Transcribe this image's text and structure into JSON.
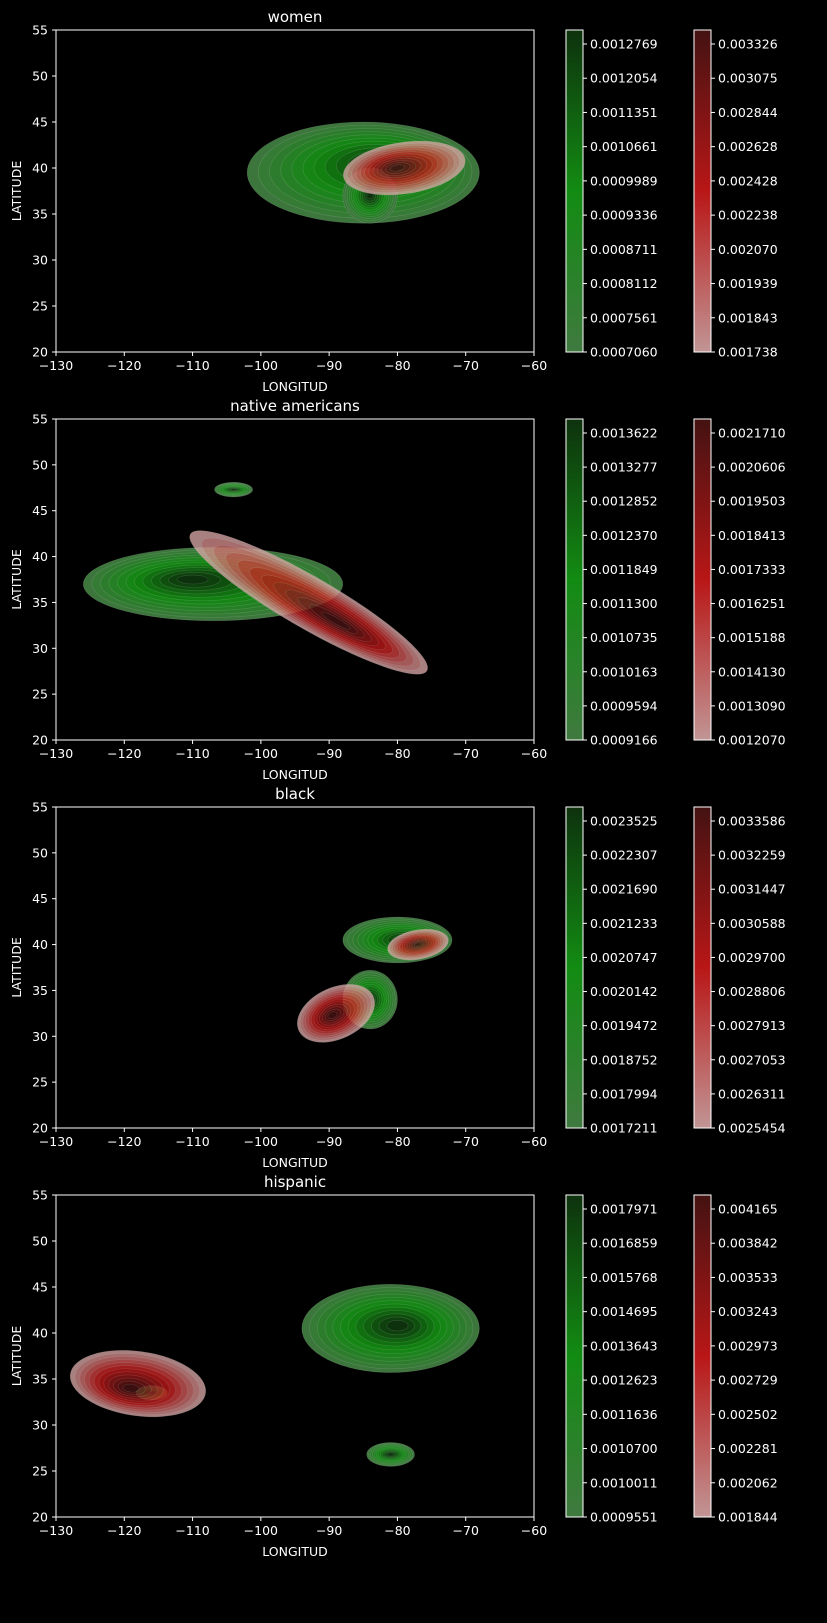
{
  "chart_data": [
    {
      "type": "contour",
      "title": "women",
      "xlabel": "LONGITUD",
      "ylabel": "LATITUDE",
      "xlim": [
        -130,
        -60
      ],
      "ylim": [
        20,
        55
      ],
      "xticks": [
        "−130",
        "−120",
        "−110",
        "−100",
        "−90",
        "−80",
        "−70",
        "−60"
      ],
      "yticks": [
        "20",
        "25",
        "30",
        "35",
        "40",
        "45",
        "50",
        "55"
      ],
      "grid": false,
      "series": [
        {
          "color": "green",
          "blobs": [
            {
              "cx": -85,
              "cy": 39.5,
              "rx": 17,
              "ry": 5.5,
              "angle": 0,
              "core_x": -82,
              "core_y": 40.5
            },
            {
              "cx": -84,
              "cy": 37,
              "rx": 4,
              "ry": 3,
              "angle": 0,
              "core_x": -84,
              "core_y": 37
            }
          ]
        },
        {
          "color": "red",
          "blobs": [
            {
              "cx": -79,
              "cy": 40,
              "rx": 9,
              "ry": 2.8,
              "angle": 8,
              "core_x": -80,
              "core_y": 40
            }
          ]
        }
      ],
      "colorbars": [
        {
          "color": "green",
          "ticks": [
            "0.0007060",
            "0.0007561",
            "0.0008112",
            "0.0008711",
            "0.0009336",
            "0.0009989",
            "0.0010661",
            "0.0011351",
            "0.0012054",
            "0.0012769"
          ]
        },
        {
          "color": "red",
          "ticks": [
            "0.001738",
            "0.001843",
            "0.001939",
            "0.002070",
            "0.002238",
            "0.002428",
            "0.002628",
            "0.002844",
            "0.003075",
            "0.003326"
          ]
        }
      ]
    },
    {
      "type": "contour",
      "title": "native americans",
      "xlabel": "LONGITUD",
      "ylabel": "LATITUDE",
      "xlim": [
        -130,
        -60
      ],
      "ylim": [
        20,
        55
      ],
      "xticks": [
        "−130",
        "−120",
        "−110",
        "−100",
        "−90",
        "−80",
        "−70",
        "−60"
      ],
      "yticks": [
        "20",
        "25",
        "30",
        "35",
        "40",
        "45",
        "50",
        "55"
      ],
      "grid": false,
      "series": [
        {
          "color": "green",
          "blobs": [
            {
              "cx": -107,
              "cy": 37,
              "rx": 19,
              "ry": 4,
              "angle": 0,
              "core_x": -110,
              "core_y": 37.5
            },
            {
              "cx": -104,
              "cy": 47.3,
              "rx": 2.8,
              "ry": 0.8,
              "angle": 0,
              "core_x": -104,
              "core_y": 47.3
            }
          ]
        },
        {
          "color": "red",
          "blobs": [
            {
              "cx": -93,
              "cy": 35,
              "rx": 20,
              "ry": 2.8,
              "angle": -30,
              "core_x": -89,
              "core_y": 33
            }
          ]
        }
      ],
      "colorbars": [
        {
          "color": "green",
          "ticks": [
            "0.0009166",
            "0.0009594",
            "0.0010163",
            "0.0010735",
            "0.0011300",
            "0.0011849",
            "0.0012370",
            "0.0012852",
            "0.0013277",
            "0.0013622"
          ]
        },
        {
          "color": "red",
          "ticks": [
            "0.0012070",
            "0.0013090",
            "0.0014130",
            "0.0015188",
            "0.0016251",
            "0.0017333",
            "0.0018413",
            "0.0019503",
            "0.0020606",
            "0.0021710"
          ]
        }
      ]
    },
    {
      "type": "contour",
      "title": "black",
      "xlabel": "LONGITUD",
      "ylabel": "LATITUDE",
      "xlim": [
        -130,
        -60
      ],
      "ylim": [
        20,
        55
      ],
      "xticks": [
        "−130",
        "−120",
        "−110",
        "−100",
        "−90",
        "−80",
        "−70",
        "−60"
      ],
      "yticks": [
        "20",
        "25",
        "30",
        "35",
        "40",
        "45",
        "50",
        "55"
      ],
      "grid": false,
      "series": [
        {
          "color": "green",
          "blobs": [
            {
              "cx": -80,
              "cy": 40.5,
              "rx": 8,
              "ry": 2.5,
              "angle": 0,
              "core_x": -79,
              "core_y": 40.5
            },
            {
              "cx": -84,
              "cy": 34,
              "rx": 4,
              "ry": 3.2,
              "angle": 0,
              "core_x": -84,
              "core_y": 34
            }
          ]
        },
        {
          "color": "red",
          "blobs": [
            {
              "cx": -89,
              "cy": 32.5,
              "rx": 6,
              "ry": 2.8,
              "angle": 25,
              "core_x": -89.5,
              "core_y": 32.3
            },
            {
              "cx": -77,
              "cy": 40,
              "rx": 4.5,
              "ry": 1.6,
              "angle": 10,
              "core_x": -77,
              "core_y": 40
            }
          ]
        }
      ],
      "colorbars": [
        {
          "color": "green",
          "ticks": [
            "0.0017211",
            "0.0017994",
            "0.0018752",
            "0.0019472",
            "0.0020142",
            "0.0020747",
            "0.0021233",
            "0.0021690",
            "0.0022307",
            "0.0023525"
          ]
        },
        {
          "color": "red",
          "ticks": [
            "0.0025454",
            "0.0026311",
            "0.0027053",
            "0.0027913",
            "0.0028806",
            "0.0029700",
            "0.0030588",
            "0.0031447",
            "0.0032259",
            "0.0033586"
          ]
        }
      ]
    },
    {
      "type": "contour",
      "title": "hispanic",
      "xlabel": "LONGITUD",
      "ylabel": "LATITUDE",
      "xlim": [
        -130,
        -60
      ],
      "ylim": [
        20,
        55
      ],
      "xticks": [
        "−130",
        "−120",
        "−110",
        "−100",
        "−90",
        "−80",
        "−70",
        "−60"
      ],
      "yticks": [
        "20",
        "25",
        "30",
        "35",
        "40",
        "45",
        "50",
        "55"
      ],
      "grid": false,
      "series": [
        {
          "color": "green",
          "blobs": [
            {
              "cx": -81,
              "cy": 40.5,
              "rx": 13,
              "ry": 4.8,
              "angle": 0,
              "core_x": -80,
              "core_y": 40.8
            },
            {
              "cx": -81,
              "cy": 26.8,
              "rx": 3.5,
              "ry": 1.3,
              "angle": 0,
              "core_x": -81,
              "core_y": 26.8
            },
            {
              "cx": -116,
              "cy": 33.5,
              "rx": 2.3,
              "ry": 0.8,
              "angle": 0,
              "core_x": -116,
              "core_y": 33.5
            }
          ]
        },
        {
          "color": "red",
          "blobs": [
            {
              "cx": -118,
              "cy": 34.5,
              "rx": 10,
              "ry": 3.5,
              "angle": -8,
              "core_x": -119,
              "core_y": 34
            }
          ]
        }
      ],
      "colorbars": [
        {
          "color": "green",
          "ticks": [
            "0.0009551",
            "0.0010011",
            "0.0010700",
            "0.0011636",
            "0.0012623",
            "0.0013643",
            "0.0014695",
            "0.0015768",
            "0.0016859",
            "0.0017971"
          ]
        },
        {
          "color": "red",
          "ticks": [
            "0.001844",
            "0.002062",
            "0.002281",
            "0.002502",
            "0.002729",
            "0.002973",
            "0.003243",
            "0.003533",
            "0.003842",
            "0.004165"
          ]
        }
      ]
    }
  ]
}
